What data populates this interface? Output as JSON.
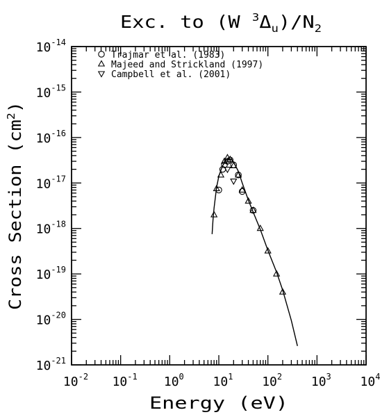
{
  "chart_data": {
    "type": "scatter",
    "title": {
      "prefix": "Exc. to (W ",
      "sup": "3",
      "delta": "Δ",
      "sub": "u",
      "suffix": ")/N",
      "sub2": "2"
    },
    "xlabel": "Energy (eV)",
    "ylabel": {
      "main": "Cross Section (cm",
      "sup": "2",
      "end": ")"
    },
    "x_scale": "log",
    "y_scale": "log",
    "xlim": [
      0.01,
      10000
    ],
    "ylim": [
      1e-21,
      1e-14
    ],
    "x_ticks": [
      {
        "value": 0.01,
        "base": "10",
        "exp": "-2"
      },
      {
        "value": 0.1,
        "base": "10",
        "exp": "-1"
      },
      {
        "value": 1,
        "base": "10",
        "exp": "0"
      },
      {
        "value": 10,
        "base": "10",
        "exp": "1"
      },
      {
        "value": 100,
        "base": "10",
        "exp": "2"
      },
      {
        "value": 1000,
        "base": "10",
        "exp": "3"
      },
      {
        "value": 10000,
        "base": "10",
        "exp": "4"
      }
    ],
    "y_ticks": [
      {
        "value": 1e-21,
        "base": "10",
        "exp": "-21"
      },
      {
        "value": 1e-20,
        "base": "10",
        "exp": "-20"
      },
      {
        "value": 1e-19,
        "base": "10",
        "exp": "-19"
      },
      {
        "value": 1e-18,
        "base": "10",
        "exp": "-18"
      },
      {
        "value": 1e-17,
        "base": "10",
        "exp": "-17"
      },
      {
        "value": 1e-16,
        "base": "10",
        "exp": "-16"
      },
      {
        "value": 1e-15,
        "base": "10",
        "exp": "-15"
      },
      {
        "value": 1e-14,
        "base": "10",
        "exp": "-14"
      }
    ],
    "grid": false,
    "legend_position": "top-left",
    "series": [
      {
        "name": "Trajmar et al. (1983)",
        "marker": "circle",
        "points": [
          [
            10,
            7e-18
          ],
          [
            12,
            2e-17
          ],
          [
            13,
            2.5e-17
          ],
          [
            15,
            3e-17
          ],
          [
            17,
            3.2e-17
          ],
          [
            20,
            2.5e-17
          ],
          [
            25,
            1.5e-17
          ],
          [
            30,
            6.5e-18
          ],
          [
            50,
            2.5e-18
          ]
        ]
      },
      {
        "name": "Majeed and Strickland (1997)",
        "marker": "triangle-up",
        "points": [
          [
            8,
            2e-18
          ],
          [
            9,
            7.5e-18
          ],
          [
            11,
            1.5e-17
          ],
          [
            13,
            3e-17
          ],
          [
            15,
            3.6e-17
          ],
          [
            17,
            3.3e-17
          ],
          [
            20,
            2.4e-17
          ],
          [
            25,
            1.5e-17
          ],
          [
            30,
            7e-18
          ],
          [
            40,
            4e-18
          ],
          [
            50,
            2.5e-18
          ],
          [
            70,
            1e-18
          ],
          [
            100,
            3.2e-19
          ],
          [
            150,
            1e-19
          ],
          [
            200,
            4e-20
          ]
        ]
      },
      {
        "name": "Campbell et al. (2001)",
        "marker": "triangle-down",
        "points": [
          [
            15,
            2e-17
          ],
          [
            20,
            1.1e-17
          ]
        ]
      }
    ],
    "fit_curve": {
      "points": [
        [
          7.3,
          7.5e-19
        ],
        [
          7.6,
          1.5e-18
        ],
        [
          8,
          2.8e-18
        ],
        [
          9,
          8e-18
        ],
        [
          10,
          1.4e-17
        ],
        [
          11,
          1.9e-17
        ],
        [
          12,
          2.4e-17
        ],
        [
          14,
          3.2e-17
        ],
        [
          16,
          3.4e-17
        ],
        [
          18,
          3.3e-17
        ],
        [
          20,
          2.9e-17
        ],
        [
          25,
          1.8e-17
        ],
        [
          30,
          1e-17
        ],
        [
          40,
          4.2e-18
        ],
        [
          50,
          2.3e-18
        ],
        [
          70,
          9.5e-19
        ],
        [
          100,
          3.3e-19
        ],
        [
          150,
          1.1e-19
        ],
        [
          200,
          4.4e-20
        ],
        [
          300,
          9.5e-21
        ],
        [
          400,
          2.6e-21
        ]
      ]
    }
  }
}
